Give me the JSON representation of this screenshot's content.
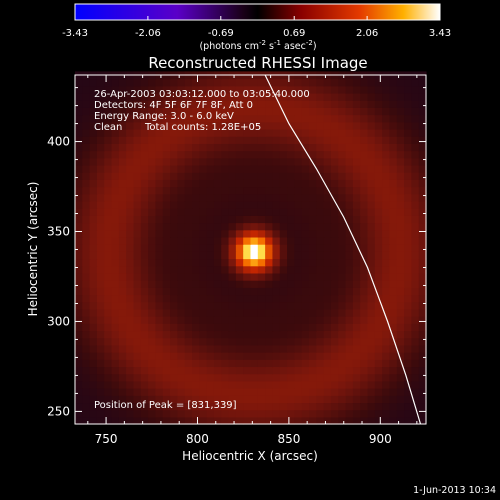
{
  "chart_data": {
    "type": "heatmap",
    "title": "Reconstructed RHESSI Image",
    "xlabel": "Heliocentric X (arcsec)",
    "ylabel": "Heliocentric Y (arcsec)",
    "xlim": [
      733,
      925
    ],
    "ylim": [
      243,
      437
    ],
    "x_ticks": [
      750,
      800,
      850,
      900
    ],
    "y_ticks": [
      250,
      300,
      350,
      400
    ],
    "annotations": {
      "time_range": "26-Apr-2003 03:03:12.000 to 03:05:40.000",
      "detectors": "Detectors: 4F 5F 6F 7F 8F, Att 0",
      "energy_range": "Energy Range: 3.0 - 6.0 keV",
      "method": "Clean",
      "total_counts": "Total counts: 1.28E+05",
      "peak_position": "Position of Peak = [831,339]"
    },
    "source": {
      "peak_x": 831,
      "peak_y": 339,
      "core_sigma_arcsec": 8,
      "ring_radius_arcsec": 80,
      "ring_width_arcsec": 17
    },
    "limb_curve": [
      [
        837,
        437
      ],
      [
        850,
        410
      ],
      [
        865,
        385
      ],
      [
        880,
        358
      ],
      [
        893,
        330
      ],
      [
        904,
        300
      ],
      [
        914,
        270
      ],
      [
        922,
        243
      ]
    ],
    "colorbar": {
      "min": -3.43,
      "max": 3.43,
      "tick_labels": [
        "-3.43",
        "-2.06",
        "-0.69",
        "0.69",
        "2.06",
        "3.43"
      ],
      "units_prefix": "(photons cm",
      "units_sup1": "-2",
      "units_mid": " s",
      "units_sup2": "-1",
      "units_mid2": " asec",
      "units_sup3": "-2",
      "units_suffix": ")"
    },
    "timestamp": "1-Jun-2013 10:34"
  }
}
